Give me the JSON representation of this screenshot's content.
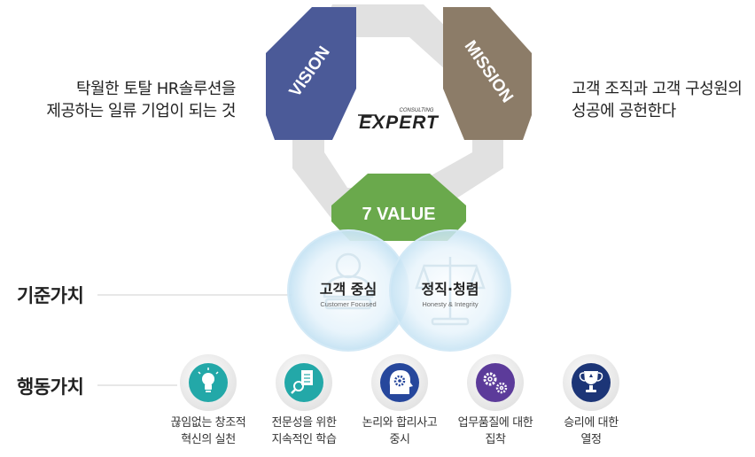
{
  "vision": {
    "label": "VISION",
    "text_line1": "탁월한 토탈 HR솔루션을",
    "text_line2": "제공하는 일류 기업이 되는 것",
    "color": "#4b5a98"
  },
  "mission": {
    "label": "MISSION",
    "text_line1": "고객 조직과 고객 구성원의",
    "text_line2": "성공에 공헌한다",
    "color": "#8c7c68"
  },
  "value": {
    "label": "7 VALUE",
    "color": "#6aa94c"
  },
  "logo": {
    "name": "EXPERT",
    "tagline": "CONSULTING"
  },
  "core_values": {
    "row_label": "기준가치",
    "items": [
      {
        "title": "고객 중심",
        "subtitle": "Customer Focused"
      },
      {
        "title": "정직·청렴",
        "subtitle": "Honesty & Integrity"
      }
    ]
  },
  "action_values": {
    "row_label": "행동가치",
    "items": [
      {
        "line1": "끊임없는 창조적",
        "line2": "혁신의 실천",
        "icon": "lightbulb-icon"
      },
      {
        "line1": "전문성을 위한",
        "line2": "지속적인 학습",
        "icon": "magnifier-document-icon"
      },
      {
        "line1": "논리와 합리사고",
        "line2": "중시",
        "icon": "head-gear-icon"
      },
      {
        "line1": "업무품질에 대한",
        "line2": "집착",
        "icon": "gears-icon"
      },
      {
        "line1": "승리에 대한",
        "line2": "열정",
        "icon": "trophy-icon"
      }
    ]
  }
}
